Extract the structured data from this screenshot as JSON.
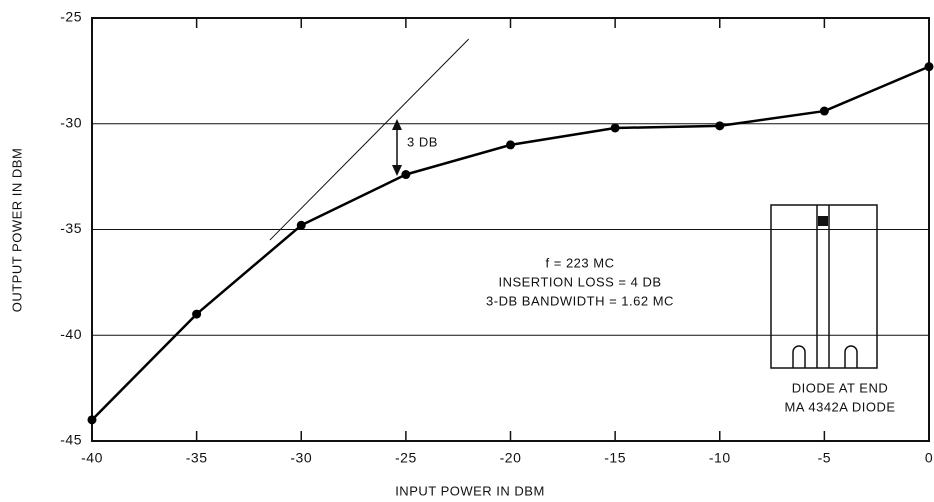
{
  "chart_data": {
    "type": "line",
    "x_label": "INPUT POWER IN DBM",
    "y_label": "OUTPUT POWER IN DBM",
    "x": [
      -40,
      -35,
      -30,
      -25,
      -20,
      -15,
      -10,
      -5,
      0
    ],
    "series": [
      {
        "color": "#000000",
        "values": [
          -44,
          -39,
          -34.8,
          -32.4,
          -31,
          -30.2,
          -30.1,
          -29.4,
          -27.3
        ]
      }
    ],
    "reference_line": {
      "x": [
        -31.5,
        -22
      ],
      "y": [
        -35.5,
        -26
      ]
    },
    "xlim": [
      -40,
      0
    ],
    "ylim": [
      -45,
      -25
    ],
    "xticks": [
      -40,
      -35,
      -30,
      -25,
      -20,
      -15,
      -10,
      -5,
      0
    ],
    "yticks": [
      -45,
      -40,
      -35,
      -30,
      -25
    ],
    "grid": true,
    "annotations": [
      "3 DB",
      "f = 223 MC",
      "INSERTION LOSS = 4 DB",
      "3-DB BANDWIDTH = 1.62 MC",
      "DIODE AT END",
      "MA 4342A DIODE"
    ]
  }
}
